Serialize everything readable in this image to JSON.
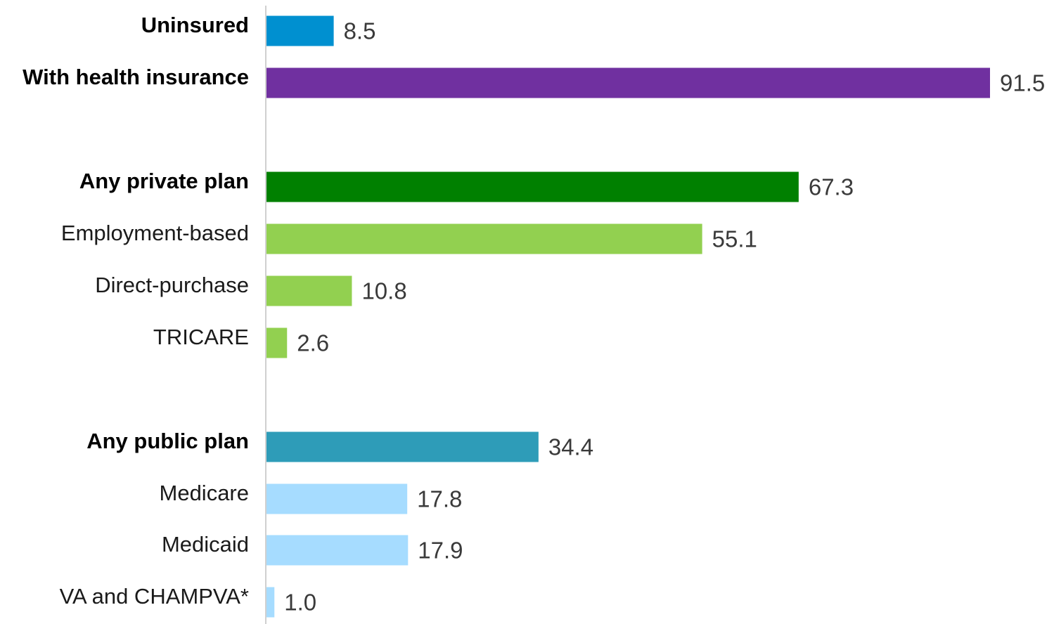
{
  "chart_data": {
    "type": "bar",
    "orientation": "horizontal",
    "categories": [
      "Uninsured",
      "With health insurance",
      "Any private plan",
      "Employment-based",
      "Direct-purchase",
      "TRICARE",
      "Any public plan",
      "Medicare",
      "Medicaid",
      "VA and CHAMPVA*"
    ],
    "values": [
      8.5,
      91.5,
      67.3,
      55.1,
      10.8,
      2.6,
      34.4,
      17.8,
      17.9,
      1.0
    ],
    "value_labels": [
      "8.5",
      "91.5",
      "67.3",
      "55.1",
      "10.8",
      "2.6",
      "34.4",
      "17.8",
      "17.9",
      "1.0"
    ],
    "bold_categories": [
      "Uninsured",
      "With health insurance",
      "Any private plan",
      "Any public plan"
    ],
    "colors": [
      "#0090d0",
      "#7030a0",
      "#008000",
      "#92d050",
      "#92d050",
      "#92d050",
      "#2e9cb8",
      "#a6dcff",
      "#a6dcff",
      "#a6dcff"
    ],
    "xlim": [
      0,
      91.5
    ],
    "grid": false,
    "legend": "none",
    "title": "",
    "xlabel": "",
    "ylabel": ""
  }
}
